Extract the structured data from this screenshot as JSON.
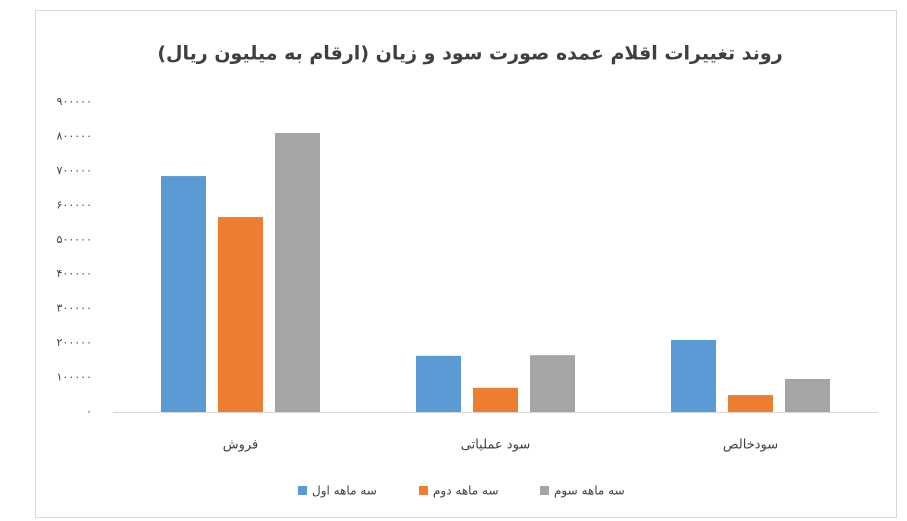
{
  "chart_data": {
    "type": "bar",
    "title": "روند تغییرات اقلام عمده صورت سود و زیان (ارقام به میلیون ریال)",
    "categories": [
      "فروش",
      "سود عملیاتی",
      "سودخالص"
    ],
    "series": [
      {
        "name": "سه ماهه اول",
        "color": "#5b9bd5",
        "values": [
          685000,
          163000,
          209000
        ]
      },
      {
        "name": "سه ماهه دوم",
        "color": "#ed7d31",
        "values": [
          566000,
          70000,
          49000
        ]
      },
      {
        "name": "سه ماهه سوم",
        "color": "#a5a5a5",
        "values": [
          810000,
          165000,
          96000
        ]
      }
    ],
    "ylim": [
      0,
      900000
    ],
    "yticks": [
      {
        "value": 0,
        "label": "۰"
      },
      {
        "value": 100000,
        "label": "۱۰۰۰۰۰"
      },
      {
        "value": 200000,
        "label": "۲۰۰۰۰۰"
      },
      {
        "value": 300000,
        "label": "۳۰۰۰۰۰"
      },
      {
        "value": 400000,
        "label": "۴۰۰۰۰۰"
      },
      {
        "value": 500000,
        "label": "۵۰۰۰۰۰"
      },
      {
        "value": 600000,
        "label": "۶۰۰۰۰۰"
      },
      {
        "value": 700000,
        "label": "۷۰۰۰۰۰"
      },
      {
        "value": 800000,
        "label": "۸۰۰۰۰۰"
      },
      {
        "value": 900000,
        "label": "۹۰۰۰۰۰"
      }
    ],
    "grid": false,
    "legend": "bottom"
  }
}
